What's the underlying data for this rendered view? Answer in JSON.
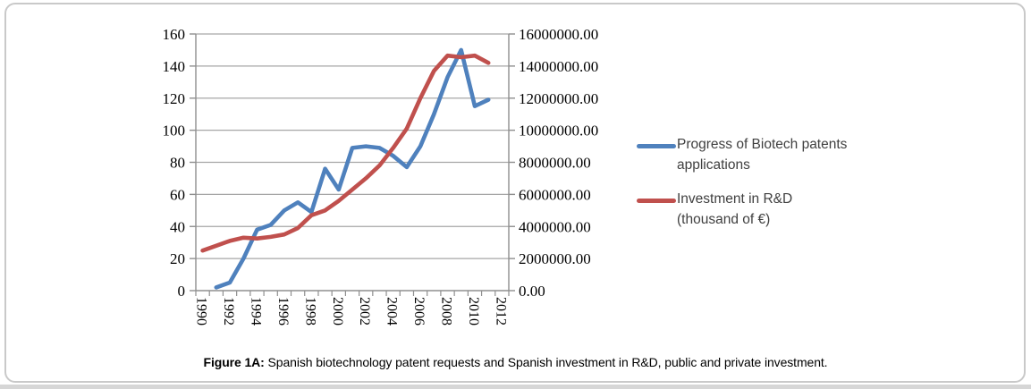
{
  "figure": {
    "caption_label": "Figure 1A:",
    "caption_text": " Spanish biotechnology patent requests and Spanish investment in R&D, public and private investment."
  },
  "colors": {
    "patents_line": "#4F81BD",
    "investment_line": "#C0504D",
    "gridline": "#a6a6a6",
    "axis": "#8f8f8f",
    "legend_text": "#404040",
    "frame_border": "#c9c9c9"
  },
  "chart_data": {
    "type": "line",
    "title": "",
    "xlabel": "",
    "ylabel_left": "",
    "ylabel_right": "",
    "grid": true,
    "legend_position": "right",
    "x_axis": {
      "categories_start": 1990,
      "categories_end": 2012,
      "tick_labels": [
        "1990",
        "1992",
        "1994",
        "1996",
        "1998",
        "2000",
        "2002",
        "2004",
        "2006",
        "2008",
        "2010",
        "2012"
      ],
      "tick_label_rotation_deg": 90
    },
    "left_axis": {
      "min": 0,
      "max": 160,
      "step": 20,
      "tick_labels": [
        "0",
        "20",
        "40",
        "60",
        "80",
        "100",
        "120",
        "140",
        "160"
      ]
    },
    "right_axis": {
      "min": 0,
      "max": 16000000,
      "step": 2000000,
      "tick_labels": [
        "0.00",
        "2000000.00",
        "4000000.00",
        "6000000.00",
        "8000000.00",
        "10000000.00",
        "12000000.00",
        "14000000.00",
        "16000000.00"
      ]
    },
    "series": [
      {
        "name": "Progress of Biotech patents applications",
        "axis": "left",
        "color": "#4F81BD",
        "years": [
          1991,
          1992,
          1993,
          1994,
          1995,
          1996,
          1997,
          1998,
          1999,
          2000,
          2001,
          2002,
          2003,
          2004,
          2005,
          2006,
          2007,
          2008,
          2009,
          2010,
          2011
        ],
        "values": [
          2,
          5,
          20,
          38,
          41,
          50,
          55,
          49,
          76,
          63,
          89,
          90,
          89,
          84,
          77,
          90,
          110,
          133,
          150,
          115,
          119
        ]
      },
      {
        "name": "Investment in R&D (thousand of €)",
        "axis": "right",
        "color": "#C0504D",
        "years": [
          1990,
          1991,
          1992,
          1993,
          1994,
          1995,
          1996,
          1997,
          1998,
          1999,
          2000,
          2001,
          2002,
          2003,
          2004,
          2005,
          2006,
          2007,
          2008,
          2009,
          2010,
          2011
        ],
        "values": [
          2500000,
          2800000,
          3100000,
          3300000,
          3250000,
          3350000,
          3500000,
          3900000,
          4700000,
          5000000,
          5600000,
          6300000,
          7000000,
          7800000,
          8900000,
          10100000,
          12000000,
          13700000,
          14650000,
          14550000,
          14650000,
          14200000
        ]
      }
    ],
    "legend": {
      "entries": [
        {
          "line1": "Progress of Biotech patents",
          "line2": "applications",
          "color": "#4F81BD"
        },
        {
          "line1": "Investment in R&D",
          "line2": "(thousand of €)",
          "color": "#C0504D"
        }
      ]
    }
  }
}
